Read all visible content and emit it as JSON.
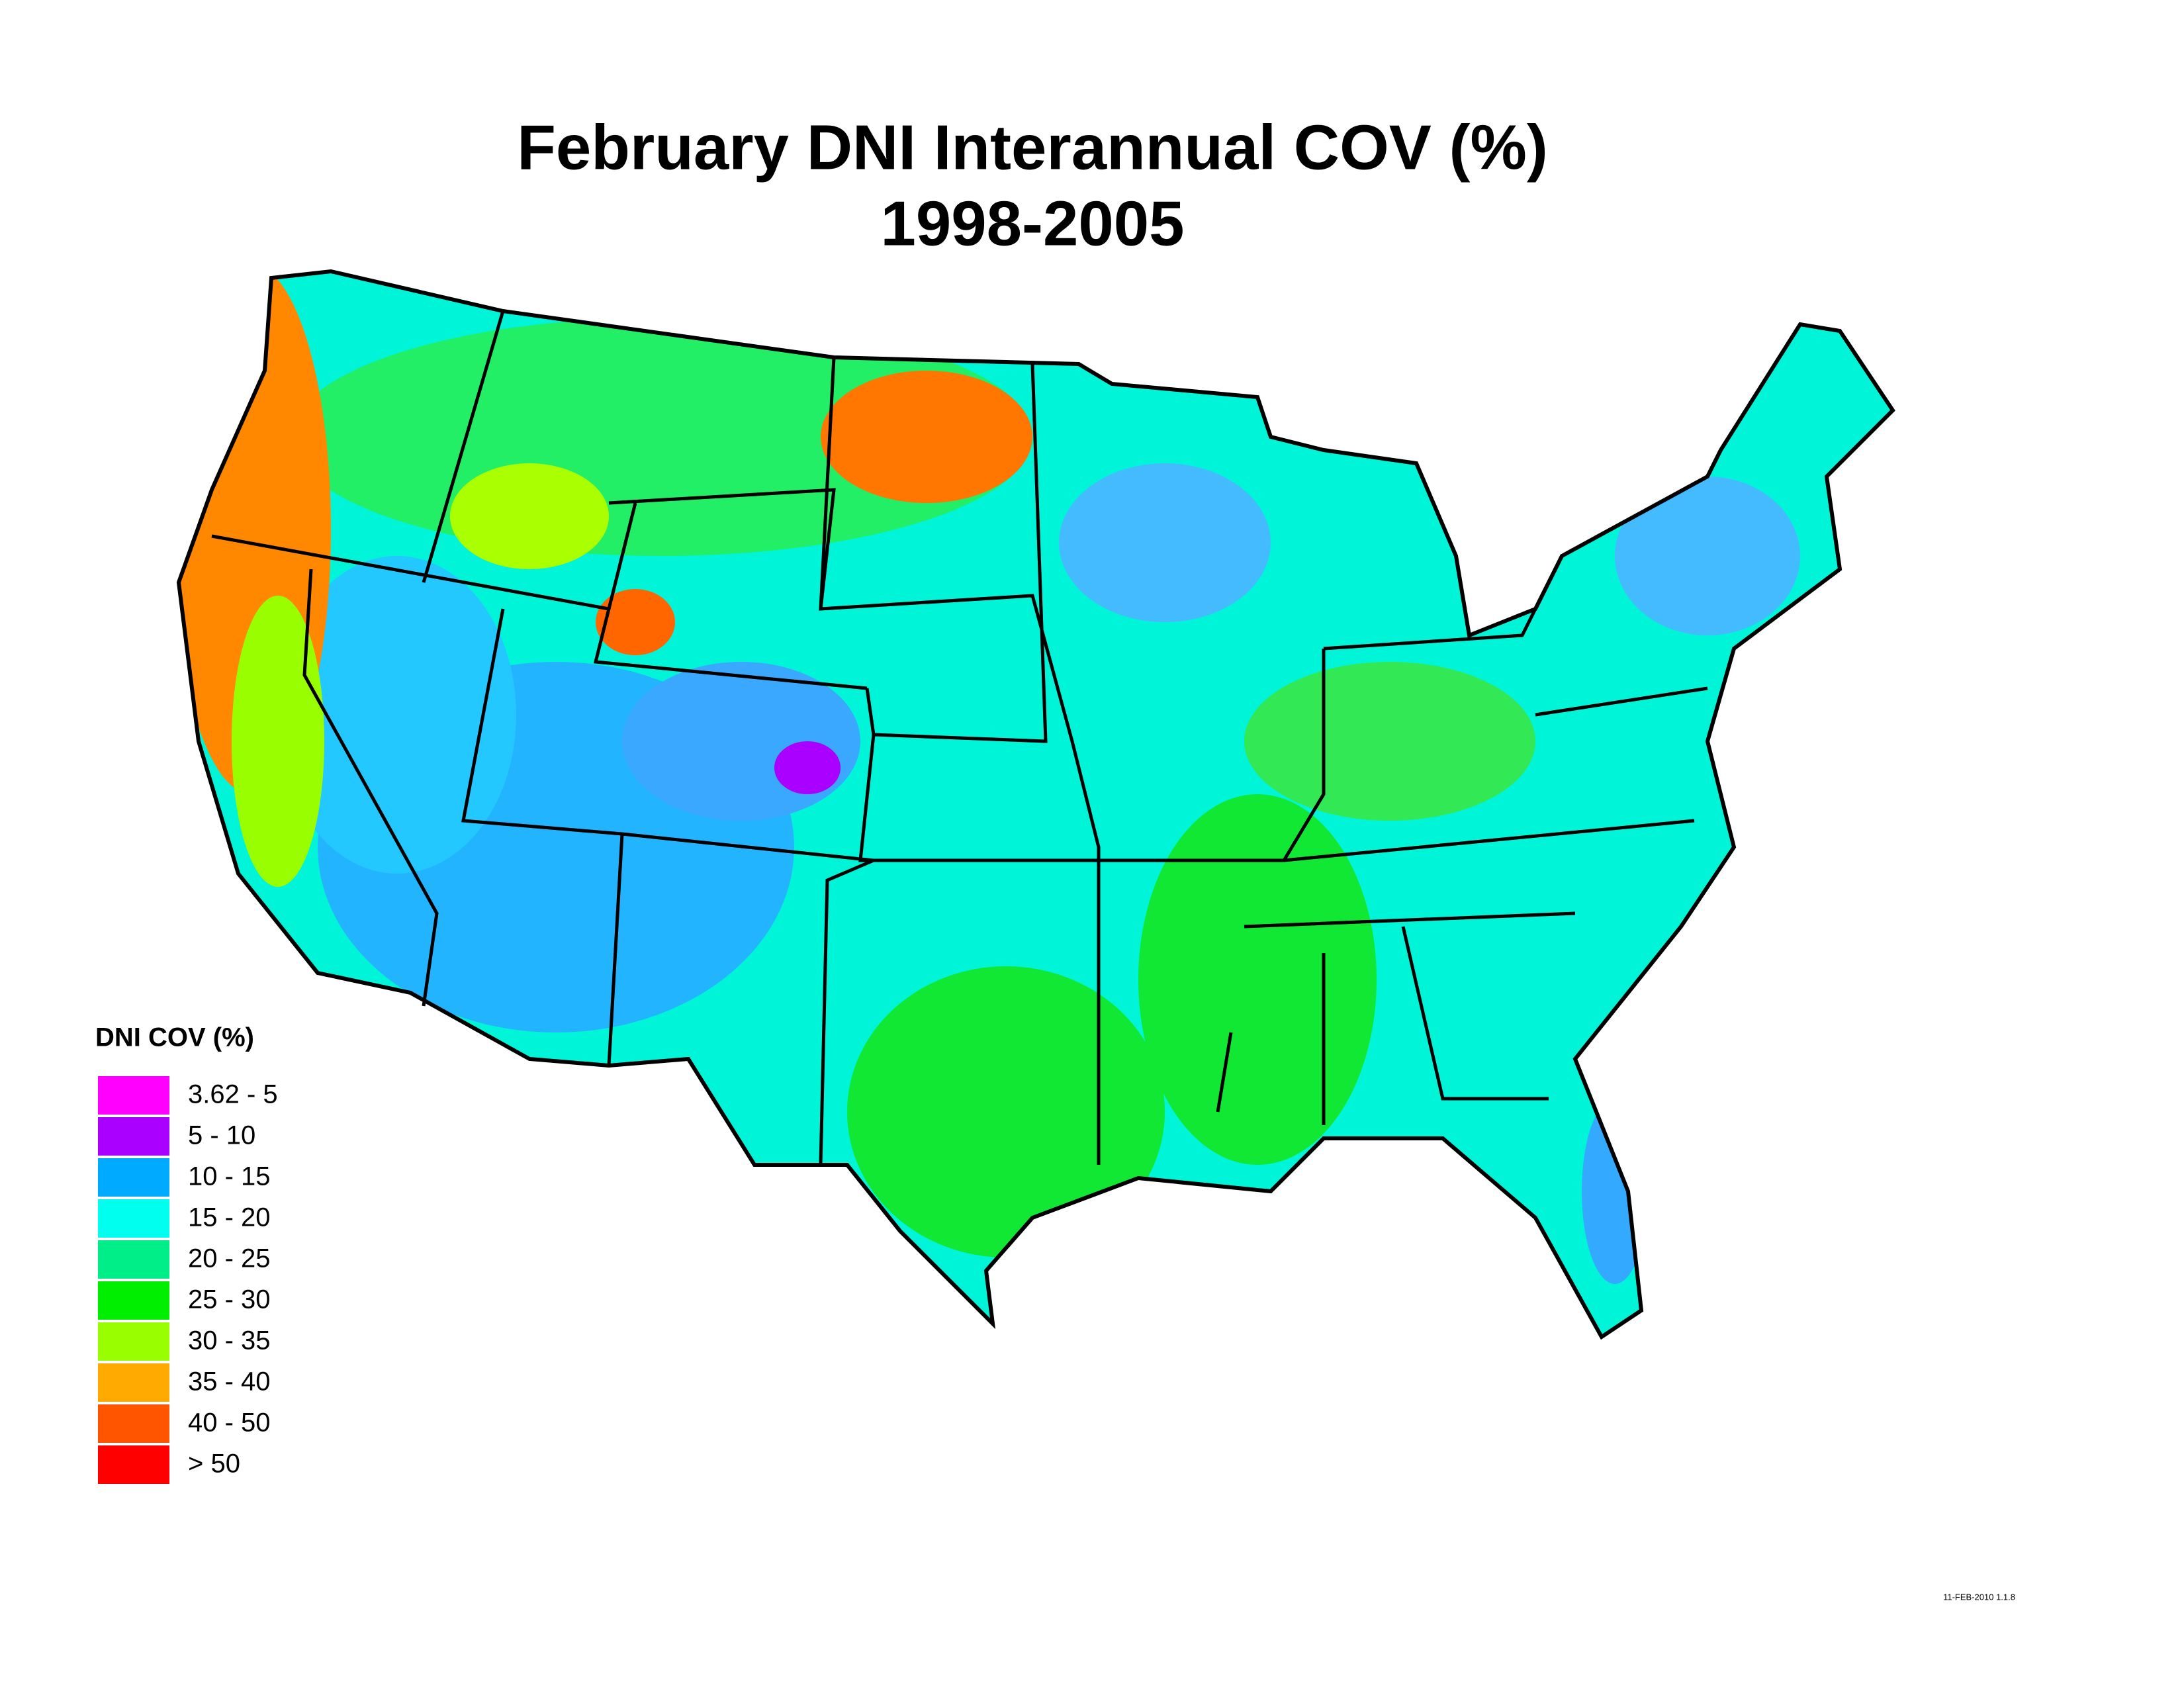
{
  "title": [
    "February DNI Interannual COV (%)",
    "1998-2005"
  ],
  "legend": {
    "title": "DNI COV (%)",
    "items": [
      {
        "label": "3.62 - 5",
        "color": "#ff00ff"
      },
      {
        "label": "5 - 10",
        "color": "#aa00ff"
      },
      {
        "label": "10 - 15",
        "color": "#00aaff"
      },
      {
        "label": "15 - 20",
        "color": "#00ffee"
      },
      {
        "label": "20 - 25",
        "color": "#00ee88"
      },
      {
        "label": "25 - 30",
        "color": "#00ee00"
      },
      {
        "label": "30 - 35",
        "color": "#99ff00"
      },
      {
        "label": "35 - 40",
        "color": "#ffaa00"
      },
      {
        "label": "40 - 50",
        "color": "#ff5500"
      },
      {
        "label": "> 50",
        "color": "#ff0000"
      }
    ]
  },
  "footer": "11-FEB-2010 1.1.8"
}
